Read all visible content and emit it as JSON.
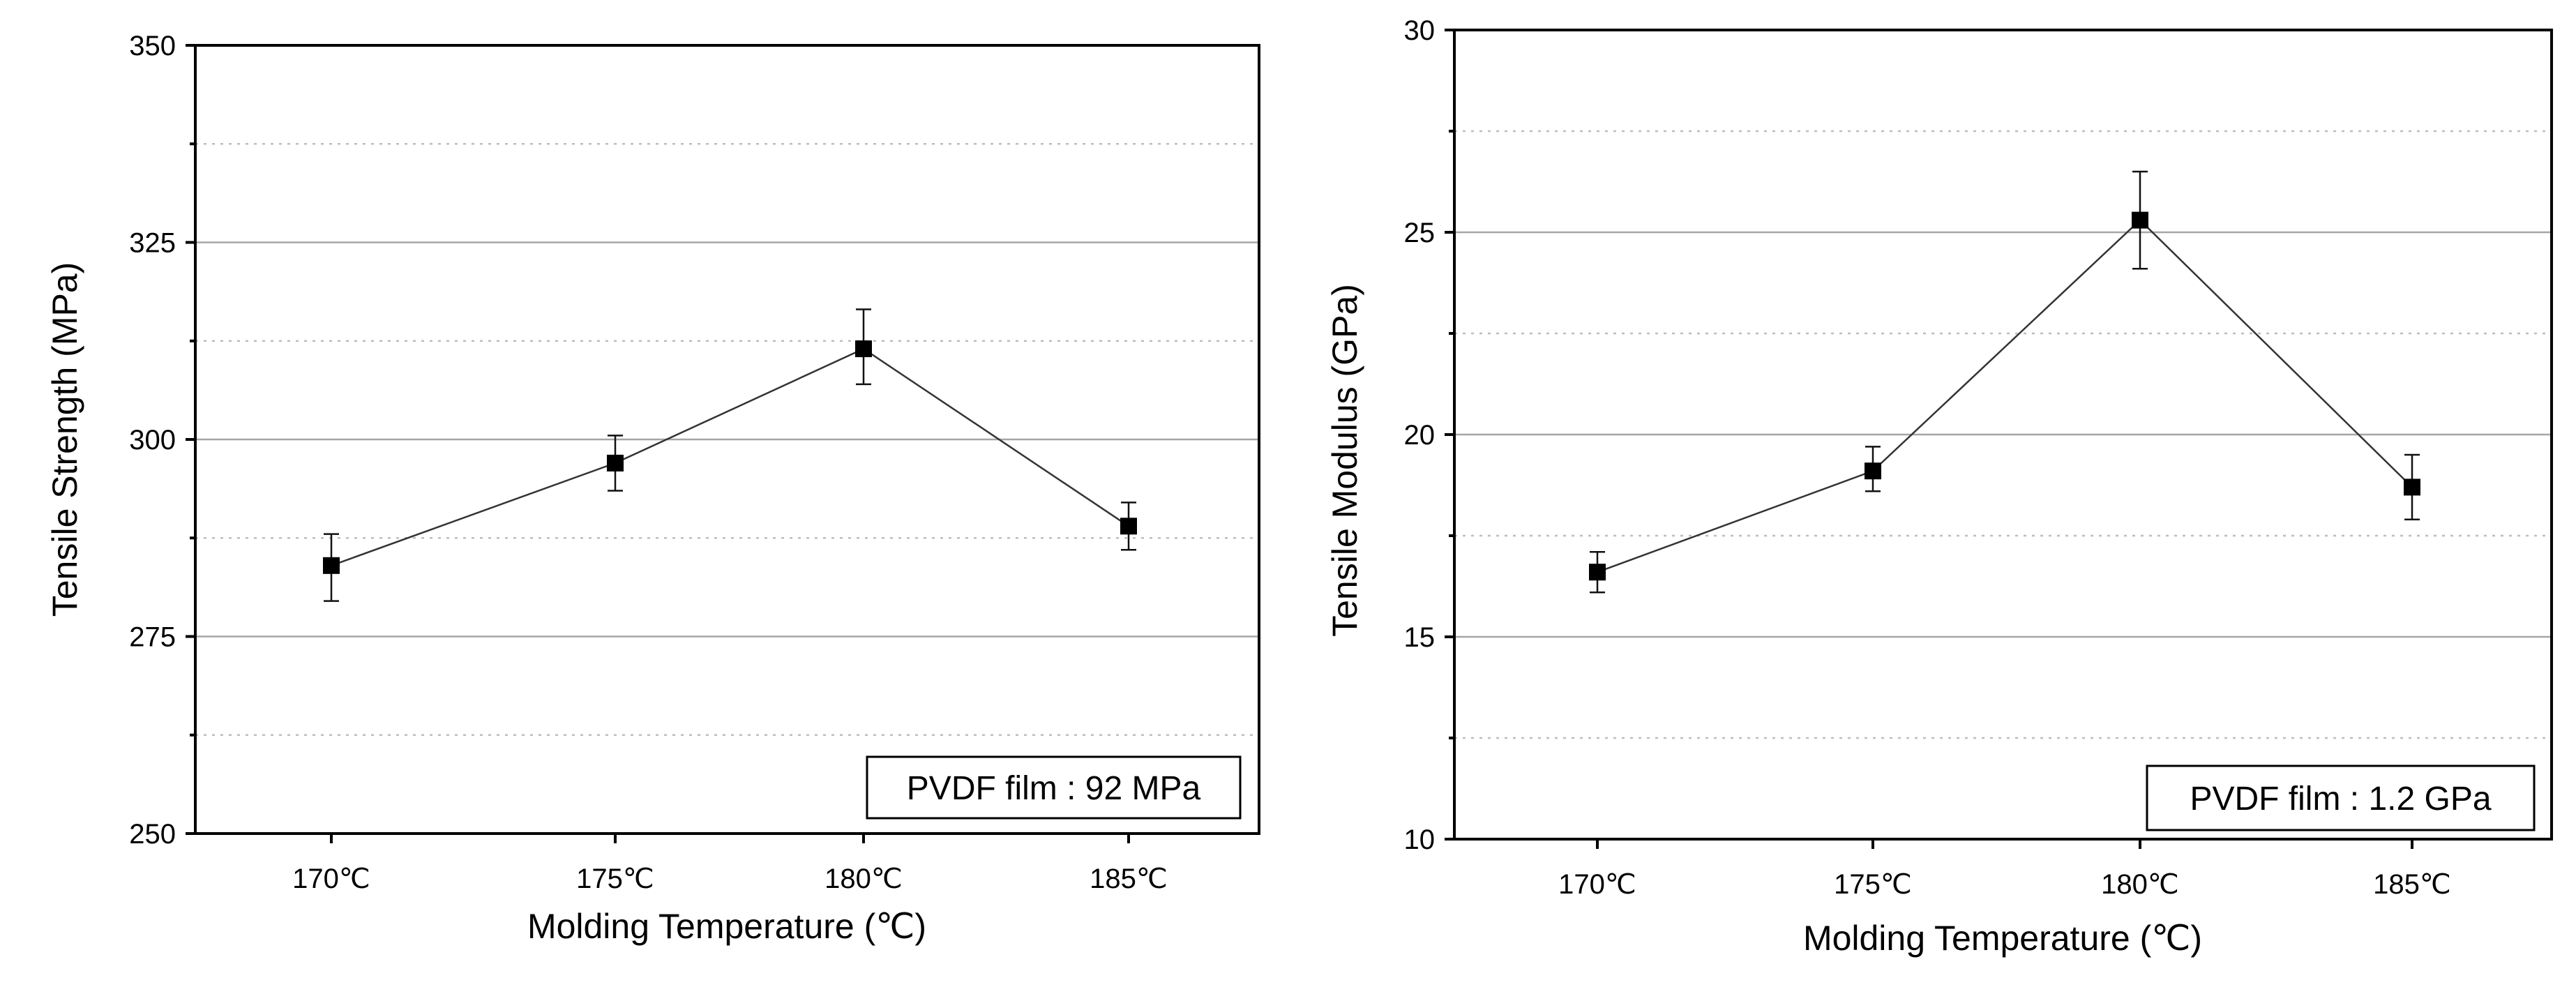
{
  "chart_data": [
    {
      "type": "line",
      "xlabel": "Molding Temperature (℃)",
      "ylabel": "Tensile Strength (MPa)",
      "categories": [
        "170℃",
        "175℃",
        "180℃",
        "185℃"
      ],
      "ylim": [
        250,
        350
      ],
      "yticks": [
        250,
        275,
        300,
        325,
        350
      ],
      "major_grid": [
        275,
        300,
        325
      ],
      "minor_grid": [
        262.5,
        287.5,
        312.5,
        337.5
      ],
      "series": [
        {
          "name": "Tensile Strength",
          "values": [
            284,
            297,
            311.5,
            289
          ],
          "err_low": [
            279.5,
            293.5,
            307,
            286
          ],
          "err_high": [
            288,
            300.5,
            316.5,
            292
          ]
        }
      ],
      "annotation": "PVDF film : 92 MPa"
    },
    {
      "type": "line",
      "xlabel": "Molding Temperature (℃)",
      "ylabel": "Tensile Modulus (GPa)",
      "categories": [
        "170℃",
        "175℃",
        "180℃",
        "185℃"
      ],
      "ylim": [
        10,
        30
      ],
      "yticks": [
        10,
        15,
        20,
        25,
        30
      ],
      "major_grid": [
        15,
        20,
        25
      ],
      "minor_grid": [
        12.5,
        17.5,
        22.5,
        27.5
      ],
      "series": [
        {
          "name": "Tensile Modulus",
          "values": [
            16.6,
            19.1,
            25.3,
            18.7
          ],
          "err_low": [
            16.1,
            18.6,
            24.1,
            17.9
          ],
          "err_high": [
            17.1,
            19.7,
            26.5,
            19.5
          ]
        }
      ],
      "annotation": "PVDF film : 1.2 GPa"
    }
  ]
}
